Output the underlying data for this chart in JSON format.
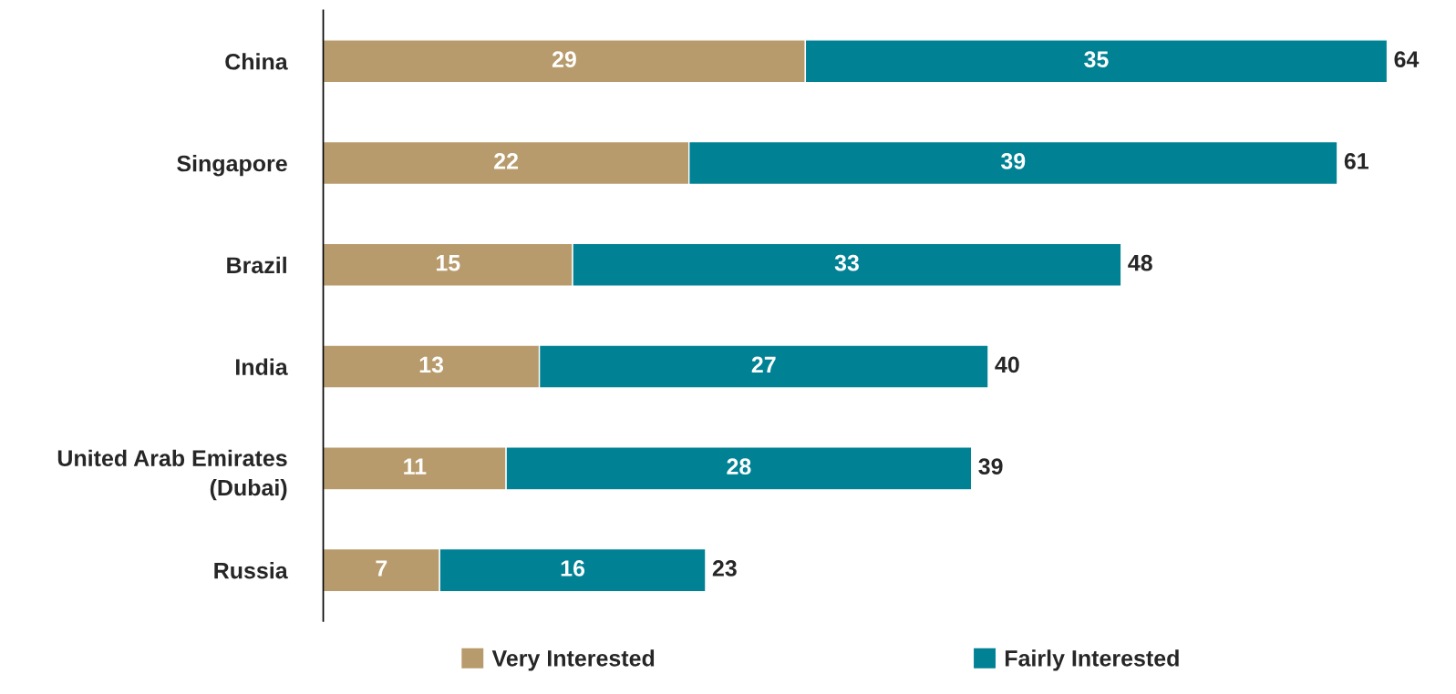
{
  "chart_data": {
    "type": "bar",
    "orientation": "horizontal",
    "stacked": true,
    "data_labels": true,
    "legend": "bottom",
    "grid": false,
    "tick_labels": "y",
    "categories": [
      "China",
      "Singapore",
      "Brazil",
      "India",
      "United Arab Emirates\n(Dubai)",
      "Russia"
    ],
    "series": [
      {
        "name": "Very Interested",
        "color": "#b89b6c",
        "values": [
          29,
          22,
          15,
          13,
          11,
          7
        ]
      },
      {
        "name": "Fairly Interested",
        "color": "#008294",
        "values": [
          35,
          39,
          33,
          27,
          28,
          16
        ]
      }
    ],
    "totals": [
      "64",
      "61",
      "48",
      "40",
      "39",
      "23"
    ]
  }
}
